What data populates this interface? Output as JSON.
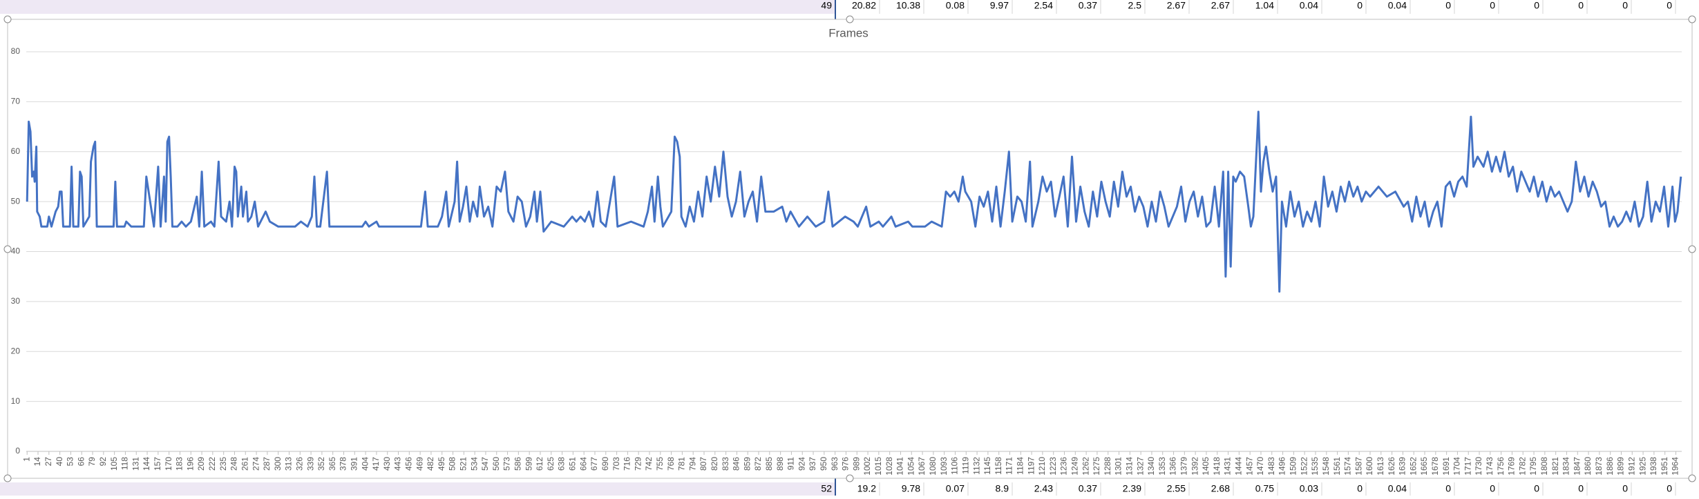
{
  "sheet_rows": [
    {
      "row": 49,
      "cells": [
        20.82,
        10.38,
        0.08,
        9.97,
        2.54,
        0.37,
        2.5,
        2.67,
        2.67,
        1.04,
        0.04,
        0,
        0.04,
        0,
        0,
        0,
        0,
        0,
        0
      ]
    },
    {
      "row": 52,
      "cells": [
        19.2,
        9.78,
        0.07,
        8.9,
        2.43,
        0.37,
        2.39,
        2.55,
        2.68,
        0.75,
        0.03,
        0,
        0.04,
        0,
        0,
        0,
        0,
        0,
        0
      ]
    }
  ],
  "chart_data": {
    "type": "line",
    "title": "Frames",
    "color": "#4472c4",
    "grid": true,
    "xlim": [
      0,
      1971
    ],
    "ylim": [
      0,
      80
    ],
    "yticks": [
      0,
      10,
      20,
      30,
      40,
      50,
      60,
      70,
      80
    ],
    "xticks": [
      1,
      14,
      27,
      40,
      53,
      66,
      79,
      92,
      105,
      118,
      131,
      144,
      157,
      170,
      183,
      196,
      209,
      222,
      235,
      248,
      261,
      274,
      287,
      300,
      313,
      326,
      339,
      352,
      365,
      378,
      391,
      404,
      417,
      430,
      443,
      456,
      469,
      482,
      495,
      508,
      521,
      534,
      547,
      560,
      573,
      586,
      599,
      612,
      625,
      638,
      651,
      664,
      677,
      690,
      703,
      716,
      729,
      742,
      755,
      768,
      781,
      794,
      807,
      820,
      833,
      846,
      859,
      872,
      885,
      898,
      911,
      924,
      937,
      950,
      963,
      976,
      989,
      1002,
      1015,
      1028,
      1041,
      1054,
      1067,
      1080,
      1093,
      1106,
      1119,
      1132,
      1145,
      1158,
      1171,
      1184,
      1197,
      1210,
      1223,
      1236,
      1249,
      1262,
      1275,
      1288,
      1301,
      1314,
      1327,
      1340,
      1353,
      1366,
      1379,
      1392,
      1405,
      1418,
      1431,
      1444,
      1457,
      1470,
      1483,
      1496,
      1509,
      1522,
      1535,
      1548,
      1561,
      1574,
      1587,
      1600,
      1613,
      1626,
      1639,
      1652,
      1665,
      1678,
      1691,
      1704,
      1717,
      1730,
      1743,
      1756,
      1769,
      1782,
      1795,
      1808,
      1821,
      1834,
      1847,
      1860,
      1873,
      1886,
      1899,
      1912,
      1925,
      1938,
      1951,
      1964
    ],
    "x": [
      1,
      3,
      5,
      7,
      9,
      10,
      12,
      13,
      16,
      18,
      25,
      27,
      30,
      35,
      38,
      40,
      42,
      44,
      52,
      54,
      56,
      62,
      64,
      66,
      68,
      75,
      77,
      80,
      82,
      84,
      104,
      106,
      108,
      117,
      119,
      125,
      140,
      143,
      152,
      157,
      160,
      164,
      166,
      168,
      170,
      172,
      174,
      180,
      185,
      190,
      196,
      203,
      206,
      209,
      212,
      220,
      224,
      229,
      232,
      238,
      242,
      245,
      248,
      250,
      252,
      256,
      258,
      262,
      264,
      268,
      272,
      276,
      285,
      290,
      300,
      320,
      327,
      335,
      340,
      343,
      346,
      350,
      358,
      361,
      400,
      404,
      408,
      417,
      420,
      470,
      475,
      478,
      490,
      495,
      500,
      503,
      510,
      513,
      516,
      520,
      524,
      528,
      532,
      537,
      540,
      545,
      550,
      555,
      560,
      565,
      570,
      574,
      580,
      585,
      590,
      595,
      600,
      605,
      608,
      612,
      616,
      625,
      640,
      650,
      655,
      660,
      665,
      670,
      675,
      680,
      684,
      690,
      700,
      704,
      720,
      735,
      740,
      745,
      748,
      752,
      755,
      758,
      768,
      772,
      775,
      778,
      780,
      785,
      790,
      795,
      800,
      805,
      810,
      815,
      820,
      825,
      830,
      835,
      840,
      845,
      850,
      855,
      860,
      865,
      870,
      875,
      880,
      890,
      900,
      905,
      910,
      920,
      930,
      940,
      950,
      955,
      960,
      975,
      985,
      990,
      1000,
      1005,
      1015,
      1020,
      1030,
      1035,
      1050,
      1055,
      1070,
      1078,
      1090,
      1095,
      1100,
      1105,
      1110,
      1115,
      1118,
      1125,
      1130,
      1135,
      1140,
      1145,
      1150,
      1155,
      1160,
      1165,
      1170,
      1174,
      1180,
      1185,
      1190,
      1195,
      1198,
      1205,
      1210,
      1215,
      1220,
      1225,
      1230,
      1235,
      1240,
      1245,
      1250,
      1255,
      1260,
      1265,
      1270,
      1275,
      1280,
      1285,
      1290,
      1295,
      1300,
      1305,
      1310,
      1315,
      1320,
      1325,
      1330,
      1335,
      1340,
      1345,
      1350,
      1355,
      1360,
      1370,
      1375,
      1380,
      1385,
      1390,
      1395,
      1400,
      1405,
      1410,
      1415,
      1420,
      1425,
      1428,
      1431,
      1434,
      1437,
      1440,
      1445,
      1450,
      1455,
      1458,
      1461,
      1467,
      1470,
      1473,
      1476,
      1480,
      1484,
      1488,
      1492,
      1495,
      1500,
      1505,
      1510,
      1515,
      1520,
      1525,
      1530,
      1535,
      1540,
      1545,
      1550,
      1555,
      1560,
      1565,
      1570,
      1575,
      1580,
      1585,
      1590,
      1595,
      1600,
      1610,
      1620,
      1630,
      1640,
      1645,
      1650,
      1655,
      1660,
      1665,
      1670,
      1675,
      1680,
      1685,
      1690,
      1695,
      1700,
      1705,
      1710,
      1715,
      1720,
      1723,
      1728,
      1735,
      1740,
      1745,
      1750,
      1755,
      1760,
      1765,
      1770,
      1775,
      1780,
      1785,
      1790,
      1795,
      1800,
      1805,
      1810,
      1815,
      1820,
      1825,
      1830,
      1835,
      1840,
      1845,
      1850,
      1855,
      1860,
      1865,
      1870,
      1875,
      1880,
      1885,
      1890,
      1895,
      1900,
      1905,
      1910,
      1915,
      1920,
      1925,
      1930,
      1935,
      1940,
      1945,
      1950,
      1955,
      1960,
      1963,
      1966,
      1970
    ],
    "values": [
      50,
      66,
      64,
      55,
      56,
      54,
      61,
      48,
      47,
      45,
      45,
      47,
      45,
      48,
      49,
      52,
      52,
      45,
      45,
      57,
      45,
      45,
      56,
      55,
      45,
      47,
      58,
      61,
      62,
      45,
      45,
      54,
      45,
      45,
      46,
      45,
      45,
      55,
      45,
      57,
      45,
      55,
      46,
      62,
      63,
      55,
      45,
      45,
      46,
      45,
      46,
      51,
      45,
      56,
      45,
      46,
      45,
      58,
      47,
      46,
      50,
      45,
      57,
      56,
      47,
      53,
      47,
      52,
      46,
      47,
      50,
      45,
      48,
      46,
      45,
      45,
      46,
      45,
      47,
      55,
      45,
      45,
      56,
      45,
      45,
      46,
      45,
      46,
      45,
      45,
      52,
      45,
      45,
      47,
      52,
      45,
      50,
      58,
      46,
      49,
      53,
      46,
      50,
      47,
      53,
      47,
      49,
      45,
      53,
      52,
      56,
      48,
      46,
      51,
      50,
      45,
      47,
      52,
      46,
      52,
      44,
      46,
      45,
      47,
      46,
      47,
      46,
      48,
      45,
      52,
      46,
      45,
      55,
      45,
      46,
      45,
      48,
      53,
      46,
      55,
      49,
      45,
      48,
      63,
      62,
      59,
      47,
      45,
      49,
      46,
      52,
      47,
      55,
      50,
      57,
      51,
      60,
      51,
      47,
      50,
      56,
      47,
      50,
      52,
      46,
      55,
      48,
      48,
      49,
      46,
      48,
      45,
      47,
      45,
      46,
      52,
      45,
      47,
      46,
      45,
      49,
      45,
      46,
      45,
      47,
      45,
      46,
      45,
      45,
      46,
      45,
      52,
      51,
      52,
      50,
      55,
      52,
      50,
      45,
      51,
      49,
      52,
      46,
      53,
      45,
      52,
      60,
      46,
      51,
      50,
      46,
      58,
      45,
      50,
      55,
      52,
      54,
      47,
      51,
      55,
      45,
      59,
      46,
      53,
      48,
      45,
      52,
      47,
      54,
      50,
      47,
      54,
      49,
      56,
      51,
      53,
      48,
      51,
      49,
      45,
      50,
      46,
      52,
      49,
      45,
      49,
      53,
      46,
      50,
      52,
      47,
      51,
      45,
      46,
      53,
      45,
      56,
      35,
      56,
      37,
      55,
      54,
      56,
      55,
      49,
      45,
      47,
      68,
      52,
      58,
      61,
      56,
      52,
      55,
      32,
      50,
      45,
      52,
      47,
      50,
      45,
      48,
      46,
      50,
      45,
      55,
      49,
      52,
      48,
      53,
      50,
      54,
      51,
      53,
      50,
      52,
      51,
      53,
      51,
      52,
      49,
      50,
      46,
      51,
      47,
      50,
      45,
      48,
      50,
      45,
      53,
      54,
      51,
      54,
      55,
      53,
      67,
      57,
      59,
      57,
      60,
      56,
      59,
      56,
      60,
      55,
      57,
      52,
      56,
      54,
      52,
      55,
      51,
      54,
      50,
      53,
      51,
      52,
      50,
      48,
      50,
      58,
      52,
      55,
      51,
      54,
      52,
      49,
      50,
      45,
      47,
      45,
      46,
      48,
      46,
      50,
      45,
      47,
      54,
      46,
      50,
      48,
      53,
      45,
      53,
      46,
      48,
      55
    ]
  }
}
